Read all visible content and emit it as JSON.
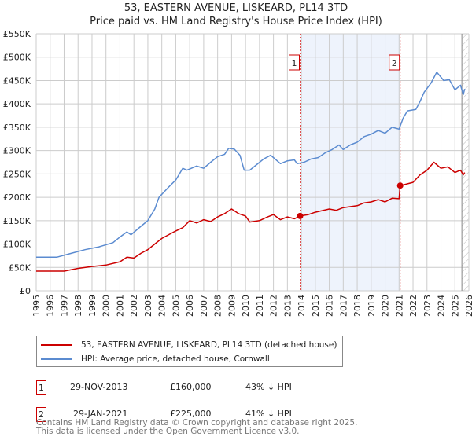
{
  "title_line1": "53, EASTERN AVENUE, LISKEARD, PL14 3TD",
  "title_line2": "Price paid vs. HM Land Registry's House Price Index (HPI)",
  "colors": {
    "property": "#cc0000",
    "hpi": "#5b8bd0",
    "shade": "#eef3fc",
    "grid": "#cccccc"
  },
  "chart_data": {
    "type": "line",
    "title": "53, EASTERN AVENUE, LISKEARD, PL14 3TD — Price paid vs. HM Land Registry's House Price Index (HPI)",
    "xlim": [
      1995,
      2026
    ],
    "ylim": [
      0,
      550000
    ],
    "x_ticks": [
      "1995",
      "1996",
      "1997",
      "1998",
      "1999",
      "2000",
      "2001",
      "2002",
      "2003",
      "2004",
      "2005",
      "2006",
      "2007",
      "2008",
      "2009",
      "2010",
      "2011",
      "2012",
      "2013",
      "2014",
      "2015",
      "2016",
      "2017",
      "2018",
      "2019",
      "2020",
      "2021",
      "2022",
      "2023",
      "2024",
      "2025",
      "2026"
    ],
    "y_ticks": [
      {
        "v": 0,
        "label": "£0"
      },
      {
        "v": 50000,
        "label": "£50K"
      },
      {
        "v": 100000,
        "label": "£100K"
      },
      {
        "v": 150000,
        "label": "£150K"
      },
      {
        "v": 200000,
        "label": "£200K"
      },
      {
        "v": 250000,
        "label": "£250K"
      },
      {
        "v": 300000,
        "label": "£300K"
      },
      {
        "v": 350000,
        "label": "£350K"
      },
      {
        "v": 400000,
        "label": "£400K"
      },
      {
        "v": 450000,
        "label": "£450K"
      },
      {
        "v": 500000,
        "label": "£500K"
      },
      {
        "v": 550000,
        "label": "£550K"
      }
    ],
    "grid": true,
    "legend_position": "below",
    "shaded_range": [
      2013.91,
      2021.08
    ],
    "hatched_from": 2025.5,
    "series": [
      {
        "name": "53, EASTERN AVENUE, LISKEARD, PL14 3TD (detached house)",
        "color": "#cc0000",
        "points": [
          [
            1995,
            42
          ],
          [
            1997,
            42
          ],
          [
            1998,
            48
          ],
          [
            1999,
            52
          ],
          [
            2000,
            55
          ],
          [
            2001,
            62
          ],
          [
            2001.5,
            72
          ],
          [
            2002,
            70
          ],
          [
            2002.5,
            80
          ],
          [
            2003,
            88
          ],
          [
            2003.5,
            100
          ],
          [
            2004,
            112
          ],
          [
            2005,
            128
          ],
          [
            2005.5,
            135
          ],
          [
            2006,
            150
          ],
          [
            2006.5,
            145
          ],
          [
            2007,
            152
          ],
          [
            2007.5,
            148
          ],
          [
            2008,
            158
          ],
          [
            2008.5,
            165
          ],
          [
            2009,
            175
          ],
          [
            2009.5,
            165
          ],
          [
            2010,
            160
          ],
          [
            2010.3,
            147
          ],
          [
            2011,
            150
          ],
          [
            2011.5,
            157
          ],
          [
            2012,
            163
          ],
          [
            2012.5,
            152
          ],
          [
            2013,
            158
          ],
          [
            2013.5,
            154
          ],
          [
            2013.91,
            160
          ],
          [
            2014.5,
            163
          ],
          [
            2015,
            168
          ],
          [
            2016,
            175
          ],
          [
            2016.5,
            172
          ],
          [
            2017,
            178
          ],
          [
            2018,
            182
          ],
          [
            2018.5,
            188
          ],
          [
            2019,
            190
          ],
          [
            2019.5,
            195
          ],
          [
            2020,
            190
          ],
          [
            2020.5,
            198
          ],
          [
            2021,
            197
          ],
          [
            2021.08,
            225
          ],
          [
            2021.5,
            228
          ],
          [
            2022,
            232
          ],
          [
            2022.5,
            248
          ],
          [
            2023,
            258
          ],
          [
            2023.5,
            275
          ],
          [
            2024,
            262
          ],
          [
            2024.5,
            265
          ],
          [
            2025,
            253
          ],
          [
            2025.4,
            258
          ],
          [
            2025.6,
            248
          ],
          [
            2025.7,
            253
          ]
        ]
      },
      {
        "name": "HPI: Average price, detached house, Cornwall",
        "color": "#5b8bd0",
        "points": [
          [
            1995,
            72
          ],
          [
            1996.5,
            72
          ],
          [
            1997.5,
            80
          ],
          [
            1998.5,
            88
          ],
          [
            1999.5,
            94
          ],
          [
            2000.5,
            103
          ],
          [
            2001,
            115
          ],
          [
            2001.5,
            126
          ],
          [
            2001.8,
            120
          ],
          [
            2002.5,
            138
          ],
          [
            2003,
            150
          ],
          [
            2003.5,
            175
          ],
          [
            2003.8,
            200
          ],
          [
            2004.5,
            222
          ],
          [
            2005,
            237
          ],
          [
            2005.5,
            262
          ],
          [
            2005.8,
            258
          ],
          [
            2006.5,
            267
          ],
          [
            2007,
            262
          ],
          [
            2007.5,
            275
          ],
          [
            2008,
            287
          ],
          [
            2008.5,
            292
          ],
          [
            2008.8,
            305
          ],
          [
            2009.2,
            303
          ],
          [
            2009.6,
            290
          ],
          [
            2009.9,
            258
          ],
          [
            2010.3,
            258
          ],
          [
            2010.8,
            270
          ],
          [
            2011.3,
            282
          ],
          [
            2011.8,
            290
          ],
          [
            2012.5,
            272
          ],
          [
            2013,
            278
          ],
          [
            2013.5,
            280
          ],
          [
            2013.7,
            272
          ],
          [
            2014.2,
            275
          ],
          [
            2014.7,
            282
          ],
          [
            2015.2,
            285
          ],
          [
            2015.7,
            295
          ],
          [
            2016.2,
            302
          ],
          [
            2016.7,
            312
          ],
          [
            2017,
            302
          ],
          [
            2017.5,
            312
          ],
          [
            2018,
            318
          ],
          [
            2018.5,
            330
          ],
          [
            2019,
            335
          ],
          [
            2019.5,
            343
          ],
          [
            2020,
            337
          ],
          [
            2020.5,
            350
          ],
          [
            2021,
            346
          ],
          [
            2021.3,
            370
          ],
          [
            2021.6,
            385
          ],
          [
            2022.2,
            388
          ],
          [
            2022.5,
            405
          ],
          [
            2022.8,
            425
          ],
          [
            2023.3,
            445
          ],
          [
            2023.7,
            468
          ],
          [
            2024.2,
            450
          ],
          [
            2024.6,
            452
          ],
          [
            2025,
            430
          ],
          [
            2025.4,
            440
          ],
          [
            2025.6,
            420
          ],
          [
            2025.7,
            432
          ]
        ]
      }
    ],
    "sales": [
      {
        "marker": "1",
        "x": 2013.91,
        "value": 160
      },
      {
        "marker": "2",
        "x": 2021.08,
        "value": 225
      }
    ],
    "value_units": "£ thousands"
  },
  "legend": {
    "property_label": "53, EASTERN AVENUE, LISKEARD, PL14 3TD (detached house)",
    "hpi_label": "HPI: Average price, detached house, Cornwall"
  },
  "transactions": [
    {
      "marker": "1",
      "date": "29-NOV-2013",
      "price": "£160,000",
      "hpi_diff": "43% ↓ HPI"
    },
    {
      "marker": "2",
      "date": "29-JAN-2021",
      "price": "£225,000",
      "hpi_diff": "41% ↓ HPI"
    }
  ],
  "footer_line1": "Contains HM Land Registry data © Crown copyright and database right 2025.",
  "footer_line2": "This data is licensed under the Open Government Licence v3.0."
}
